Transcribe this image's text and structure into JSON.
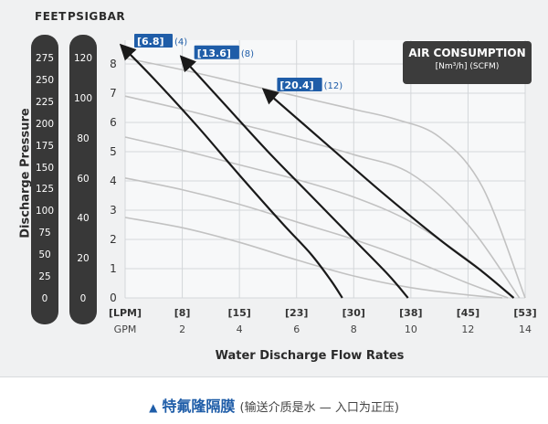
{
  "header": {
    "feet": "FEET",
    "psig": "PSIG",
    "bar": "BAR"
  },
  "feet_scale": [
    "275",
    "250",
    "225",
    "200",
    "175",
    "150",
    "125",
    "100",
    "75",
    "50",
    "25",
    "0"
  ],
  "psig_scale": [
    "120",
    "100",
    "80",
    "60",
    "40",
    "20",
    "0"
  ],
  "legend": {
    "title": "AIR CONSUMPTION",
    "subtitle": "[Nm³/h] (SCFM)"
  },
  "caption": {
    "main": "特氟隆隔膜",
    "sub": "(输送介质是水 — 入口为正压)"
  },
  "colors": {
    "pill": "#383838",
    "label_box": "#1f5da8",
    "curve": "#c2c2c2",
    "air_line": "#1a1a1a",
    "grid": "#d4d7da",
    "caption": "#1f5da8"
  },
  "chart_data": {
    "type": "line",
    "xlabel": "Water Discharge Flow Rates",
    "ylabel": "Discharge Pressure",
    "x_units": [
      "LPM",
      "GPM"
    ],
    "xlim": [
      0,
      14
    ],
    "ylim": [
      0,
      8.5
    ],
    "x_ticks": [
      0,
      2,
      4,
      6,
      8,
      10,
      12,
      14
    ],
    "x_tick_labels_lpm": [
      "[LPM]",
      "[8]",
      "[15]",
      "[23]",
      "[30]",
      "[38]",
      "[45]",
      "[53]"
    ],
    "x_tick_labels_gpm": [
      "GPM",
      "2",
      "4",
      "6",
      "8",
      "10",
      "12",
      "14"
    ],
    "y_ticks": [
      0,
      1,
      2,
      3,
      4,
      5,
      6,
      7,
      8
    ],
    "grid": true,
    "performance_curves": [
      {
        "x": [
          0,
          2,
          4,
          6,
          8,
          10,
          12,
          13.2
        ],
        "y": [
          2.75,
          2.4,
          1.9,
          1.3,
          0.75,
          0.35,
          0.1,
          0
        ]
      },
      {
        "x": [
          0,
          2,
          4,
          6,
          8,
          10,
          12,
          13.4
        ],
        "y": [
          4.1,
          3.7,
          3.2,
          2.6,
          2.0,
          1.3,
          0.5,
          0
        ]
      },
      {
        "x": [
          0,
          2,
          4,
          6,
          8,
          10,
          12,
          13.6
        ],
        "y": [
          5.5,
          5.05,
          4.55,
          4.05,
          3.45,
          2.6,
          1.3,
          0
        ]
      },
      {
        "x": [
          0,
          2,
          4,
          6,
          8,
          10,
          12,
          13.8
        ],
        "y": [
          6.9,
          6.45,
          5.95,
          5.45,
          4.9,
          4.25,
          2.5,
          0
        ]
      },
      {
        "x": [
          0,
          2,
          4,
          6,
          8,
          9.5,
          11,
          12.5,
          14
        ],
        "y": [
          8.2,
          7.8,
          7.35,
          6.9,
          6.45,
          6.1,
          5.5,
          3.8,
          0
        ]
      }
    ],
    "air_consumption_lines": [
      {
        "label": "[6.8]",
        "scfm": "(4)",
        "x": [
          0,
          1,
          2.5,
          4,
          5.5,
          6.5,
          7.2,
          7.6
        ],
        "y": [
          8.5,
          7.5,
          5.9,
          4.2,
          2.55,
          1.5,
          0.6,
          0
        ]
      },
      {
        "label": "[13.6]",
        "scfm": "(8)",
        "x": [
          2.1,
          3.5,
          5.0,
          6.5,
          8.0,
          9.2,
          9.9
        ],
        "y": [
          8.1,
          6.6,
          5.0,
          3.5,
          2.0,
          0.8,
          0
        ]
      },
      {
        "label": "[20.4]",
        "scfm": "(12)",
        "x": [
          5.0,
          7.0,
          9.0,
          11.0,
          12.5,
          13.6
        ],
        "y": [
          7.0,
          5.3,
          3.6,
          2.0,
          0.9,
          0
        ]
      }
    ]
  }
}
